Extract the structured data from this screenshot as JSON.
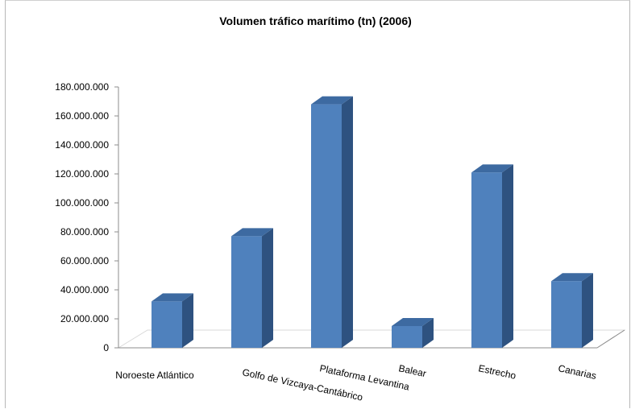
{
  "chart_data": {
    "type": "bar",
    "title": "Volumen tráfico marítimo (tn) (2006)",
    "categories": [
      "Noroeste Atlántico",
      "Golfo de Vizcaya-Cantábrico",
      "Plataforma Levantina",
      "Balear",
      "Estrecho",
      "Canarias"
    ],
    "values": [
      32000000,
      77000000,
      168000000,
      15000000,
      121000000,
      46000000
    ],
    "ylim": [
      0,
      180000000
    ],
    "yticks": [
      "0",
      "20.000.000",
      "40.000.000",
      "60.000.000",
      "80.000.000",
      "100.000.000",
      "120.000.000",
      "140.000.000",
      "160.000.000",
      "180.000.000"
    ],
    "xlabel": "",
    "ylabel": "",
    "legend": "none",
    "grid": false,
    "style": "3d-column",
    "colors": {
      "front": "#4f81bd",
      "side": "#2e5280",
      "top": "#3d6aa1"
    }
  }
}
